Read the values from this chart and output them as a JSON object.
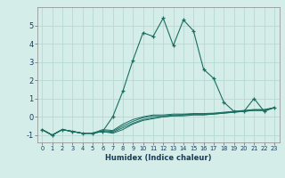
{
  "xlabel": "Humidex (Indice chaleur)",
  "x": [
    0,
    1,
    2,
    3,
    4,
    5,
    6,
    7,
    8,
    9,
    10,
    11,
    12,
    13,
    14,
    15,
    16,
    17,
    18,
    19,
    20,
    21,
    22,
    23
  ],
  "y_main": [
    -0.7,
    -1.0,
    -0.7,
    -0.8,
    -0.9,
    -0.9,
    -0.8,
    0.0,
    1.4,
    3.1,
    4.6,
    4.4,
    5.4,
    3.9,
    5.3,
    4.7,
    2.6,
    2.1,
    0.8,
    0.3,
    0.3,
    1.0,
    0.3,
    0.5
  ],
  "y_line1": [
    -0.7,
    -1.0,
    -0.7,
    -0.8,
    -0.9,
    -0.9,
    -0.8,
    -0.9,
    -0.7,
    -0.4,
    -0.2,
    -0.1,
    0.0,
    0.05,
    0.05,
    0.1,
    0.1,
    0.15,
    0.2,
    0.25,
    0.3,
    0.35,
    0.35,
    0.5
  ],
  "y_line2": [
    -0.7,
    -1.0,
    -0.7,
    -0.8,
    -0.9,
    -0.9,
    -0.8,
    -0.85,
    -0.6,
    -0.35,
    -0.15,
    -0.05,
    0.0,
    0.05,
    0.1,
    0.12,
    0.12,
    0.15,
    0.2,
    0.25,
    0.3,
    0.35,
    0.35,
    0.5
  ],
  "y_line3": [
    -0.7,
    -1.0,
    -0.7,
    -0.8,
    -0.9,
    -0.9,
    -0.75,
    -0.8,
    -0.5,
    -0.25,
    -0.05,
    0.05,
    0.05,
    0.1,
    0.12,
    0.15,
    0.15,
    0.18,
    0.22,
    0.27,
    0.32,
    0.37,
    0.37,
    0.5
  ],
  "y_line4": [
    -0.7,
    -1.0,
    -0.7,
    -0.8,
    -0.9,
    -0.9,
    -0.7,
    -0.75,
    -0.4,
    -0.15,
    0.0,
    0.1,
    0.1,
    0.15,
    0.15,
    0.18,
    0.18,
    0.2,
    0.25,
    0.3,
    0.35,
    0.4,
    0.4,
    0.5
  ],
  "bg_color": "#d4ede8",
  "line_color": "#1a6e62",
  "grid_color": "#b5d9d2",
  "ylim": [
    -1.4,
    6.0
  ],
  "xlim": [
    -0.5,
    23.5
  ],
  "yticks": [
    -1,
    0,
    1,
    2,
    3,
    4,
    5
  ],
  "xticks": [
    0,
    1,
    2,
    3,
    4,
    5,
    6,
    7,
    8,
    9,
    10,
    11,
    12,
    13,
    14,
    15,
    16,
    17,
    18,
    19,
    20,
    21,
    22,
    23
  ]
}
